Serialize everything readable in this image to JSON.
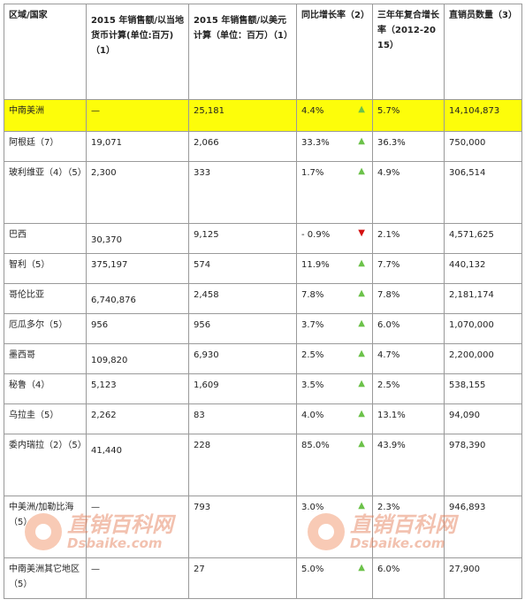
{
  "headers": {
    "region": "区域/国家",
    "local": "2015 年销售额/以当地货币计算(单位:百万)（1）",
    "usd": "2015 年销售额/以美元计算（单位：百万）（1）",
    "yoy": "同比增长率（2）",
    "cagr": "三年年复合增长率（2012-2015）",
    "sellers": "直销员数量（3）"
  },
  "rows": [
    {
      "region": "中南美洲",
      "local": "—",
      "usd": "25,181",
      "yoy": "4.4%",
      "trend": "up",
      "cagr": "5.7%",
      "sellers": "14,104,873"
    },
    {
      "region": "阿根廷（7）",
      "local": "19,071",
      "usd": "2,066",
      "yoy": "33.3%",
      "trend": "up",
      "cagr": "36.3%",
      "sellers": "750,000"
    },
    {
      "region": "玻利维亚（4）（5）",
      "local": "2,300",
      "usd": "333",
      "yoy": "1.7%",
      "trend": "up",
      "cagr": "4.9%",
      "sellers": "306,514"
    },
    {
      "region": "巴西",
      "local": "30,370",
      "usd": "9,125",
      "yoy": "- 0.9%",
      "trend": "down",
      "cagr": "2.1%",
      "sellers": "4,571,625"
    },
    {
      "region": "智利（5）",
      "local": "375,197",
      "usd": "574",
      "yoy": "11.9%",
      "trend": "up",
      "cagr": "7.7%",
      "sellers": "440,132"
    },
    {
      "region": "哥伦比亚",
      "local": "6,740,876",
      "usd": "2,458",
      "yoy": "7.8%",
      "trend": "up",
      "cagr": "7.8%",
      "sellers": "2,181,174"
    },
    {
      "region": "厄瓜多尔（5）",
      "local": "956",
      "usd": "956",
      "yoy": "3.7%",
      "trend": "up",
      "cagr": "6.0%",
      "sellers": "1,070,000"
    },
    {
      "region": "墨西哥",
      "local": "109,820",
      "usd": "6,930",
      "yoy": "2.5%",
      "trend": "up",
      "cagr": "4.7%",
      "sellers": "2,200,000"
    },
    {
      "region": "秘鲁（4）",
      "local": "5,123",
      "usd": "1,609",
      "yoy": "3.5%",
      "trend": "up",
      "cagr": "2.5%",
      "sellers": "538,155"
    },
    {
      "region": "乌拉圭（5）",
      "local": "2,262",
      "usd": "83",
      "yoy": "4.0%",
      "trend": "up",
      "cagr": "13.1%",
      "sellers": "94,090"
    },
    {
      "region": "委内瑞拉（2）（5）",
      "local": "41,440",
      "usd": "228",
      "yoy": "85.0%",
      "trend": "up",
      "cagr": "43.9%",
      "sellers": "978,390"
    },
    {
      "region": "中美洲/加勒比海（5）",
      "local": "—",
      "usd": "793",
      "yoy": "3.0%",
      "trend": "up",
      "cagr": "2.3%",
      "sellers": "946,893"
    },
    {
      "region": "中南美洲其它地区（5）",
      "local": "—",
      "usd": "27",
      "yoy": "5.0%",
      "trend": "up",
      "cagr": "6.0%",
      "sellers": "27,900"
    }
  ],
  "icons": {
    "up": "triangle-up-icon",
    "down": "triangle-down-icon"
  },
  "colors": {
    "highlight": "#fdfd0a",
    "up": "#6cc24a",
    "down": "#d41010",
    "watermark": "#e4784f"
  },
  "watermark": {
    "cn": "直销百科网",
    "en": "Dsbaike.com"
  }
}
